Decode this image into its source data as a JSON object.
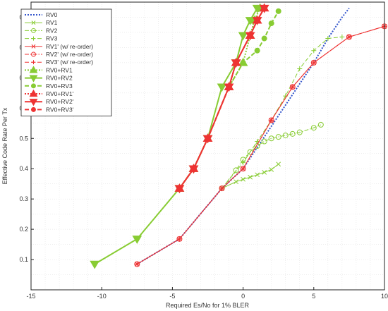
{
  "chart_data": {
    "type": "line",
    "xlabel": "Required Es/No for 1% BLER",
    "ylabel": "Effective Code Rate Per Tx",
    "xlim": [
      -15,
      10
    ],
    "ylim": [
      0,
      0.95
    ],
    "xticks": [
      -15,
      -10,
      -5,
      0,
      5,
      10
    ],
    "yticks": [
      0.1,
      0.2,
      0.3,
      0.4,
      0.5,
      0.6,
      0.7,
      0.8,
      0.9
    ],
    "grid": true,
    "legend_position": "top-left",
    "series": [
      {
        "name": "RV0",
        "color": "#3355cc",
        "dash": "dotted",
        "marker": "none",
        "width": 2,
        "points": [
          [
            -7.5,
            0.085
          ],
          [
            -4.5,
            0.168
          ],
          [
            -1.5,
            0.335
          ],
          [
            0,
            0.4
          ],
          [
            1,
            0.47
          ],
          [
            2,
            0.54
          ],
          [
            3,
            0.61
          ],
          [
            4,
            0.68
          ],
          [
            5,
            0.75
          ],
          [
            6,
            0.83
          ],
          [
            7,
            0.9
          ],
          [
            7.5,
            0.93
          ]
        ]
      },
      {
        "name": "RV1",
        "color": "#88cc33",
        "dash": "solid",
        "marker": "x",
        "width": 1,
        "points": [
          [
            -1.5,
            0.335
          ],
          [
            -0.5,
            0.357
          ],
          [
            0,
            0.365
          ],
          [
            0.5,
            0.372
          ],
          [
            1,
            0.38
          ],
          [
            1.5,
            0.388
          ],
          [
            2,
            0.397
          ],
          [
            2.5,
            0.415
          ]
        ]
      },
      {
        "name": "RV2",
        "color": "#88cc33",
        "dash": "dashdot",
        "marker": "circle-open",
        "width": 1,
        "points": [
          [
            -1.5,
            0.335
          ],
          [
            -0.5,
            0.395
          ],
          [
            0,
            0.43
          ],
          [
            0.5,
            0.455
          ],
          [
            1,
            0.475
          ],
          [
            1.5,
            0.49
          ],
          [
            2,
            0.5
          ],
          [
            2.5,
            0.505
          ],
          [
            3,
            0.51
          ],
          [
            3.5,
            0.515
          ],
          [
            4,
            0.52
          ],
          [
            5,
            0.535
          ],
          [
            5.5,
            0.545
          ]
        ]
      },
      {
        "name": "RV3",
        "color": "#88cc33",
        "dash": "dashed",
        "marker": "plus",
        "width": 1,
        "points": [
          [
            -1.5,
            0.335
          ],
          [
            0,
            0.42
          ],
          [
            1,
            0.49
          ],
          [
            2,
            0.56
          ],
          [
            3,
            0.64
          ],
          [
            4,
            0.73
          ],
          [
            5,
            0.79
          ],
          [
            6,
            0.83
          ],
          [
            7,
            0.835
          ]
        ]
      },
      {
        "name": "RV1' (w/ re-order)",
        "color": "#ee3333",
        "dash": "solid",
        "marker": "x",
        "width": 1,
        "points": [
          [
            -7.5,
            0.085
          ],
          [
            -4.5,
            0.168
          ],
          [
            -1.5,
            0.335
          ],
          [
            0,
            0.4
          ],
          [
            2,
            0.56
          ],
          [
            3.5,
            0.67
          ],
          [
            5,
            0.75
          ],
          [
            7.5,
            0.835
          ],
          [
            10,
            0.87
          ]
        ]
      },
      {
        "name": "RV2' (w/ re-order)",
        "color": "#ee3333",
        "dash": "dashdot",
        "marker": "circle-open",
        "width": 1,
        "points": [
          [
            -7.5,
            0.085
          ],
          [
            -4.5,
            0.168
          ],
          [
            -1.5,
            0.335
          ],
          [
            0,
            0.4
          ],
          [
            2,
            0.56
          ],
          [
            3.5,
            0.67
          ],
          [
            5,
            0.75
          ],
          [
            7.5,
            0.835
          ],
          [
            10,
            0.87
          ]
        ]
      },
      {
        "name": "RV3' (w/ re-order)",
        "color": "#ee3333",
        "dash": "dashed",
        "marker": "plus",
        "width": 1,
        "points": [
          [
            -7.5,
            0.085
          ],
          [
            -4.5,
            0.168
          ],
          [
            -1.5,
            0.335
          ],
          [
            0,
            0.4
          ],
          [
            2,
            0.56
          ],
          [
            3.5,
            0.67
          ],
          [
            5,
            0.75
          ],
          [
            7.5,
            0.835
          ],
          [
            10,
            0.87
          ]
        ]
      },
      {
        "name": "RV0+RV1",
        "color": "#88cc33",
        "dash": "dotted",
        "marker": "triangle-up",
        "width": 2,
        "points": [
          [
            -4.5,
            0.335
          ],
          [
            -3.5,
            0.4
          ],
          [
            -2.5,
            0.5
          ],
          [
            -1,
            0.67
          ],
          [
            0,
            0.75
          ],
          [
            0.5,
            0.84
          ],
          [
            0.8,
            0.89
          ],
          [
            1.2,
            0.93
          ]
        ]
      },
      {
        "name": "RV0+RV2",
        "color": "#88cc33",
        "dash": "solid",
        "marker": "triangle-down",
        "width": 2,
        "points": [
          [
            -10.5,
            0.085
          ],
          [
            -7.5,
            0.168
          ],
          [
            -4.5,
            0.335
          ],
          [
            -3.5,
            0.4
          ],
          [
            -2.5,
            0.5
          ],
          [
            -1.5,
            0.67
          ],
          [
            -0.5,
            0.75
          ],
          [
            0,
            0.84
          ],
          [
            0.5,
            0.89
          ],
          [
            1,
            0.93
          ]
        ]
      },
      {
        "name": "RV0+RV3",
        "color": "#88cc33",
        "dash": "dashed",
        "marker": "circle-filled",
        "width": 2,
        "points": [
          [
            -4.5,
            0.335
          ],
          [
            -3.5,
            0.4
          ],
          [
            -2.5,
            0.5
          ],
          [
            -1,
            0.67
          ],
          [
            0,
            0.75
          ],
          [
            1,
            0.79
          ],
          [
            1.5,
            0.83
          ],
          [
            2,
            0.88
          ],
          [
            2.5,
            0.92
          ]
        ]
      },
      {
        "name": "RV0+RV1'",
        "color": "#ee3333",
        "dash": "dotted",
        "marker": "triangle-up",
        "width": 2,
        "points": [
          [
            -4.5,
            0.335
          ],
          [
            -3.5,
            0.4
          ],
          [
            -2.5,
            0.5
          ],
          [
            -1,
            0.67
          ],
          [
            -0.5,
            0.75
          ],
          [
            0.5,
            0.84
          ],
          [
            1,
            0.89
          ],
          [
            1.5,
            0.93
          ]
        ]
      },
      {
        "name": "RV0+RV2'",
        "color": "#ee3333",
        "dash": "solid",
        "marker": "triangle-down",
        "width": 2,
        "points": [
          [
            -4.5,
            0.335
          ],
          [
            -3.5,
            0.4
          ],
          [
            -2.5,
            0.5
          ],
          [
            -1,
            0.67
          ],
          [
            -0.5,
            0.75
          ],
          [
            0.5,
            0.84
          ],
          [
            1,
            0.89
          ],
          [
            1.5,
            0.93
          ]
        ]
      },
      {
        "name": "RV0+RV3'",
        "color": "#ee3333",
        "dash": "dashed",
        "marker": "circle-filled",
        "width": 2,
        "points": [
          [
            -4.5,
            0.335
          ],
          [
            -3.5,
            0.4
          ],
          [
            -2.5,
            0.5
          ],
          [
            -1,
            0.67
          ],
          [
            -0.5,
            0.75
          ],
          [
            0.5,
            0.84
          ],
          [
            1,
            0.89
          ],
          [
            1.5,
            0.93
          ]
        ]
      }
    ]
  }
}
